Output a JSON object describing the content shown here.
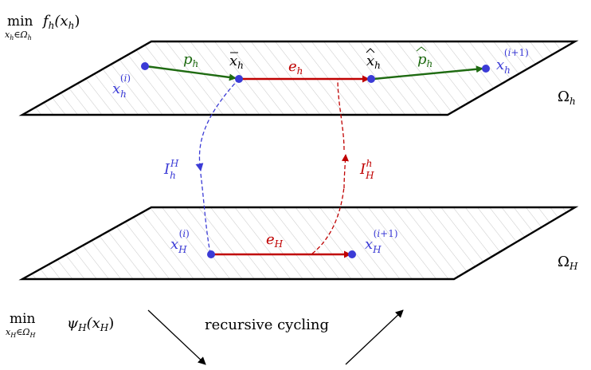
{
  "colors": {
    "blue": "#3b3bd6",
    "green": "#1f6b12",
    "red": "#c00000",
    "black": "#000000",
    "hatch": "#c8c8c8"
  },
  "objective_fine": {
    "op": "min",
    "sub": "x_h∈Ω_h",
    "expr": "f_h(x_h)"
  },
  "objective_coarse": {
    "op": "min",
    "sub": "x_H∈Ω_H",
    "expr": "ψ_H(x_H)"
  },
  "planes": {
    "fine_label": "Ω_h",
    "coarse_label": "Ω_H"
  },
  "fine_points": {
    "x_i": "x_h^(i)",
    "x_bar": "x̄_h",
    "x_hat": "x̂_h",
    "x_next": "x_h^(i+1)"
  },
  "fine_arrows": {
    "p": "p_h",
    "e": "e_h",
    "p_hat": "p̂_h"
  },
  "coarse_points": {
    "x_i": "x_H^(i)",
    "x_next": "x_H^(i+1)"
  },
  "coarse_arrows": {
    "e": "e_H"
  },
  "transfer": {
    "restriction": "I_h^H",
    "prolongation": "I_H^h"
  },
  "caption": "recursive cycling"
}
